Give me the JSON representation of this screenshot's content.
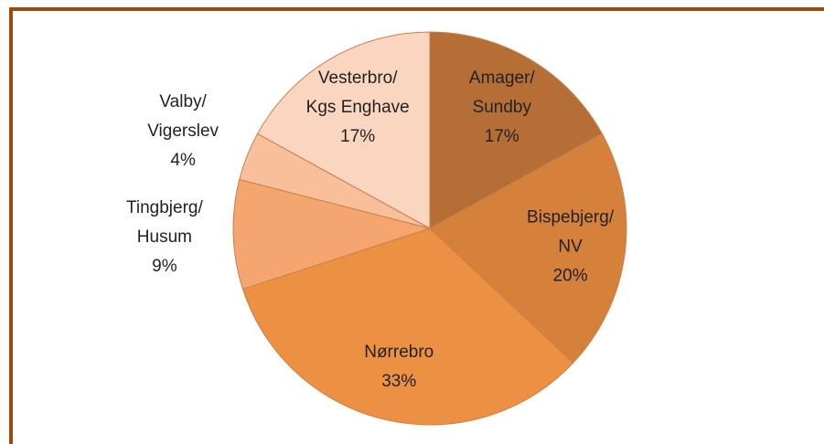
{
  "chart_data": {
    "type": "pie",
    "categories": [
      "Amager/\nSundby",
      "Bispebjerg/\nNV",
      "Nørrebro",
      "Tingbjerg/\nHusum",
      "Valby/\nVigerslev",
      "Vesterbro/\nKgs Enghave"
    ],
    "values": [
      17,
      20,
      33,
      9,
      4,
      17
    ],
    "value_labels": [
      "17%",
      "20%",
      "33%",
      "9%",
      "4%",
      "17%"
    ],
    "colors": [
      "#b56f36",
      "#d5803b",
      "#ec9043",
      "#f4a66e",
      "#f8bf9b",
      "#fad6c1"
    ]
  }
}
